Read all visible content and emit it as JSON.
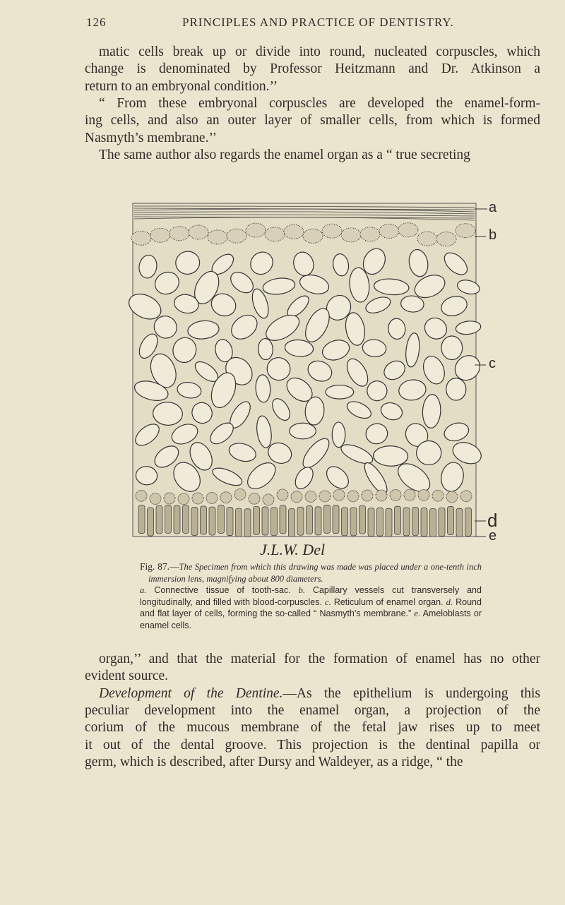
{
  "header": {
    "page_number": "126",
    "running_title": "PRINCIPLES AND PRACTICE OF DENTISTRY."
  },
  "paragraphs_top": [
    {
      "lines": [
        "matic cells break up or divide into round, nucleated corpuscles, which",
        "change is denominated by Professor Heitzmann and Dr. Atkinson a",
        "return to an embryonal condition.’’"
      ]
    },
    {
      "lines": [
        "“ From these embryonal corpuscles are developed the enamel-form-",
        "ing cells, and also an outer layer of smaller cells, from which is formed",
        "Nasmyth’s membrane.’’"
      ]
    },
    {
      "lines": [
        "The same author also regards the enamel organ as a “ true secreting"
      ]
    }
  ],
  "figure": {
    "labels": [
      "a",
      "b",
      "c",
      "d",
      "e"
    ],
    "signature": "J.L.W. Del",
    "caption": {
      "number": "Fig. 87.—",
      "title": "The Specimen from which this drawing was made was placed under a one-tenth inch immersion lens, magnifying about 800 diameters.",
      "legend": [
        {
          "letter": "a.",
          "text": "Connective tissue of tooth-sac."
        },
        {
          "letter": "b.",
          "text": "Capillary vessels cut transversely and longitudinally, and filled with blood-corpuscles."
        },
        {
          "letter": "c.",
          "text": "Reticulum of enamel organ."
        },
        {
          "letter": "d.",
          "text": "Round and flat layer of cells, forming the so-called “ Nasmyth’s membrane.”"
        },
        {
          "letter": "e.",
          "text": "Ameloblasts or enamel cells."
        }
      ]
    }
  },
  "paragraphs_bottom": [
    {
      "lines": [
        "organ,’’ and that the material for the formation of enamel has no other",
        "evident source."
      ]
    },
    {
      "heading": "Development of the Dentine.",
      "lines": [
        "—As the epithelium is undergoing this",
        "peculiar development into the enamel organ, a projection of the",
        "corium of the mucous membrane of the fetal jaw rises up to meet",
        "it out of the dental groove. This projection is the dentinal papilla or",
        "germ, which is described, after Dursy and Waldeyer, as a ridge, “ the"
      ]
    }
  ]
}
